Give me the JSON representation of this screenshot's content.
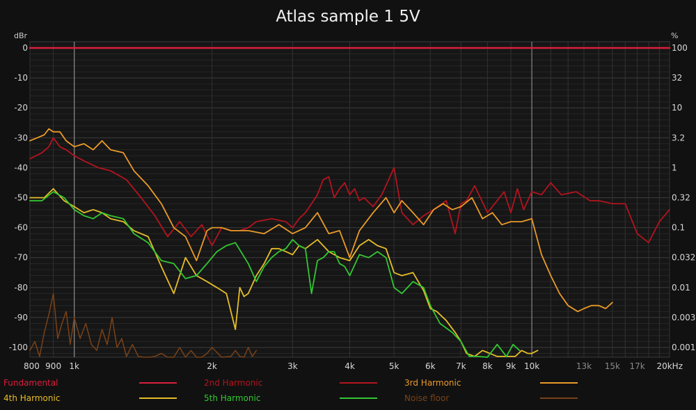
{
  "chart_data": {
    "type": "line",
    "title": "Atlas sample 1 5V",
    "ylabel_left": "dBr",
    "ylabel_right": "%",
    "x_scale": "log",
    "xlim": [
      800,
      20000
    ],
    "ylim": [
      -103,
      0
    ],
    "x_ticks": [
      {
        "v": 800,
        "label": "800",
        "dim": false
      },
      {
        "v": 900,
        "label": "900",
        "dim": false
      },
      {
        "v": 1000,
        "label": "1k",
        "dim": false
      },
      {
        "v": 2000,
        "label": "2k",
        "dim": false
      },
      {
        "v": 3000,
        "label": "3k",
        "dim": false
      },
      {
        "v": 4000,
        "label": "4k",
        "dim": false
      },
      {
        "v": 5000,
        "label": "5k",
        "dim": false
      },
      {
        "v": 6000,
        "label": "6k",
        "dim": false
      },
      {
        "v": 7000,
        "label": "7k",
        "dim": false
      },
      {
        "v": 8000,
        "label": "8k",
        "dim": false
      },
      {
        "v": 9000,
        "label": "9k",
        "dim": false
      },
      {
        "v": 10000,
        "label": "10k",
        "dim": false
      },
      {
        "v": 13000,
        "label": "13k",
        "dim": true
      },
      {
        "v": 15000,
        "label": "15k",
        "dim": true
      },
      {
        "v": 17000,
        "label": "17k",
        "dim": true
      },
      {
        "v": 20000,
        "label": "20kHz",
        "dim": false
      }
    ],
    "y_ticks_left": [
      0,
      -10,
      -20,
      -30,
      -40,
      -50,
      -60,
      -70,
      -80,
      -90,
      -100
    ],
    "y_ticks_right": [
      "100",
      "32",
      "10",
      "3.2",
      "1",
      "0.32",
      "0.1",
      "0.032",
      "0.01",
      "0.0032",
      "0.001"
    ],
    "grid": true,
    "legend_position": "bottom",
    "series": [
      {
        "name": "Fundamental",
        "color": "#dc1e3c",
        "x": [
          800,
          20000
        ],
        "y": [
          0,
          0
        ]
      },
      {
        "name": "2nd Harmonic",
        "color": "#b4141e",
        "x": [
          800,
          850,
          880,
          900,
          930,
          960,
          1000,
          1060,
          1130,
          1200,
          1300,
          1400,
          1500,
          1600,
          1700,
          1800,
          1900,
          2000,
          2100,
          2200,
          2300,
          2400,
          2500,
          2700,
          2900,
          3000,
          3100,
          3200,
          3300,
          3400,
          3500,
          3600,
          3700,
          3800,
          3900,
          4000,
          4100,
          4200,
          4300,
          4500,
          4700,
          5000,
          5200,
          5500,
          5800,
          6100,
          6500,
          6800,
          7000,
          7200,
          7500,
          8000,
          8300,
          8700,
          9000,
          9300,
          9600,
          10000,
          10500,
          11000,
          11600,
          12500,
          13400,
          14000,
          15000,
          16000,
          17000,
          18000,
          19000,
          20000
        ],
        "y": [
          -37,
          -35,
          -33,
          -30,
          -33,
          -34,
          -36,
          -38,
          -40,
          -41,
          -44,
          -50,
          -56,
          -63,
          -58,
          -63,
          -59,
          -66,
          -60,
          -61,
          -61,
          -60,
          -58,
          -57,
          -58,
          -60,
          -57,
          -55,
          -52,
          -49,
          -44,
          -43,
          -50,
          -47,
          -45,
          -49,
          -47,
          -51,
          -50,
          -53,
          -49,
          -40,
          -55,
          -59,
          -56,
          -54,
          -51,
          -62,
          -52,
          -51,
          -46,
          -55,
          -52,
          -48,
          -55,
          -47,
          -54,
          -48,
          -49,
          -45,
          -49,
          -48,
          -51,
          -51,
          -52,
          -52,
          -62,
          -65,
          -58,
          -54
        ]
      },
      {
        "name": "3rd Harmonic",
        "color": "#eb9b28",
        "x": [
          800,
          830,
          860,
          880,
          900,
          930,
          960,
          1000,
          1050,
          1100,
          1150,
          1200,
          1280,
          1350,
          1450,
          1550,
          1650,
          1750,
          1850,
          1950,
          2000,
          2100,
          2200,
          2400,
          2600,
          2800,
          3000,
          3200,
          3400,
          3600,
          3800,
          4000,
          4200,
          4500,
          4800,
          5000,
          5200,
          5500,
          5800,
          6100,
          6400,
          6700,
          7000,
          7400,
          7800,
          8200,
          8600,
          9000,
          9500,
          10000,
          10500,
          11000,
          11500,
          12000,
          12600,
          13000,
          13500,
          14000,
          14500,
          15000
        ],
        "y": [
          -31,
          -30,
          -29,
          -27,
          -28,
          -28,
          -31,
          -33,
          -32,
          -34,
          -31,
          -34,
          -35,
          -41,
          -46,
          -52,
          -60,
          -63,
          -71,
          -61,
          -60,
          -60,
          -61,
          -61,
          -62,
          -59,
          -62,
          -60,
          -55,
          -62,
          -61,
          -70,
          -61,
          -55,
          -50,
          -55,
          -51,
          -55,
          -59,
          -54,
          -52,
          -54,
          -53,
          -50,
          -57,
          -55,
          -59,
          -58,
          -58,
          -57,
          -69,
          -76,
          -82,
          -86,
          -88,
          -87,
          -86,
          -86,
          -87,
          -85
        ]
      },
      {
        "name": "4th Harmonic",
        "color": "#e6be28",
        "x": [
          800,
          860,
          900,
          950,
          1000,
          1050,
          1100,
          1150,
          1200,
          1280,
          1350,
          1450,
          1550,
          1650,
          1750,
          1850,
          1950,
          2050,
          2150,
          2250,
          2300,
          2350,
          2400,
          2500,
          2600,
          2700,
          2800,
          2900,
          3000,
          3100,
          3200,
          3400,
          3600,
          3800,
          4000,
          4200,
          4400,
          4600,
          4800,
          5000,
          5200,
          5500,
          5800,
          6000,
          6200,
          6500,
          6800,
          7000,
          7200,
          7500,
          7800,
          8100,
          8400,
          8700,
          9000,
          9200,
          9500,
          9800,
          10000,
          10300
        ],
        "y": [
          -50,
          -50,
          -47,
          -51,
          -53,
          -55,
          -54,
          -55,
          -57,
          -58,
          -61,
          -63,
          -73,
          -82,
          -70,
          -76,
          -78,
          -80,
          -82,
          -94,
          -80,
          -83,
          -82,
          -76,
          -72,
          -67,
          -67,
          -68,
          -69,
          -66,
          -67,
          -64,
          -68,
          -70,
          -71,
          -66,
          -64,
          -66,
          -67,
          -75,
          -76,
          -75,
          -81,
          -87,
          -88,
          -91,
          -95,
          -98,
          -102,
          -103,
          -101,
          -102,
          -103,
          -103,
          -103,
          -103,
          -101,
          -102,
          -102,
          -101
        ]
      },
      {
        "name": "5th Harmonic",
        "color": "#32c832",
        "x": [
          800,
          850,
          900,
          950,
          1000,
          1050,
          1100,
          1150,
          1200,
          1280,
          1350,
          1450,
          1550,
          1650,
          1750,
          1850,
          1950,
          2050,
          2150,
          2250,
          2400,
          2500,
          2600,
          2700,
          2800,
          2900,
          3000,
          3100,
          3200,
          3300,
          3400,
          3500,
          3600,
          3700,
          3800,
          3900,
          4000,
          4200,
          4400,
          4600,
          4800,
          5000,
          5200,
          5500,
          5800,
          6000,
          6300,
          6700,
          7000,
          7300,
          7600,
          8000,
          8400,
          8800,
          9100,
          9400
        ],
        "y": [
          -51,
          -51,
          -48,
          -50,
          -54,
          -56,
          -57,
          -55,
          -56,
          -57,
          -62,
          -65,
          -71,
          -72,
          -77,
          -76,
          -72,
          -68,
          -66,
          -65,
          -72,
          -78,
          -73,
          -70,
          -68,
          -67,
          -64,
          -66,
          -67,
          -82,
          -71,
          -70,
          -68,
          -68,
          -72,
          -73,
          -76,
          -69,
          -70,
          -68,
          -70,
          -80,
          -82,
          -78,
          -80,
          -86,
          -92,
          -95,
          -98,
          -103,
          -103,
          -104,
          -99,
          -103,
          -99,
          -101
        ]
      },
      {
        "name": "Noise floor",
        "color": "#7a4218",
        "x": [
          800,
          820,
          840,
          860,
          880,
          900,
          920,
          940,
          960,
          980,
          1000,
          1030,
          1060,
          1090,
          1120,
          1150,
          1180,
          1210,
          1240,
          1270,
          1300,
          1340,
          1380,
          1420,
          1460,
          1500,
          1550,
          1600,
          1650,
          1700,
          1750,
          1800,
          1850,
          1900,
          1950,
          2000,
          2100,
          2200,
          2250,
          2300,
          2350,
          2400,
          2450,
          2500
        ],
        "y": [
          -101,
          -98,
          -103,
          -95,
          -89,
          -82,
          -97,
          -92,
          -88,
          -99,
          -90,
          -97,
          -92,
          -99,
          -101,
          -94,
          -99,
          -90,
          -100,
          -97,
          -103,
          -99,
          -103,
          -104,
          -105,
          -103,
          -102,
          -105,
          -104,
          -100,
          -104,
          -101,
          -106,
          -105,
          -102,
          -100,
          -104,
          -103,
          -101,
          -103,
          -104,
          -100,
          -103,
          -101
        ]
      }
    ]
  },
  "legend": [
    {
      "label": "Fundamental",
      "color": "#dc1e3c"
    },
    {
      "label": "2nd Harmonic",
      "color": "#b4141e"
    },
    {
      "label": "3rd Harmonic",
      "color": "#eb9b28"
    },
    {
      "label": "4th Harmonic",
      "color": "#e6be28"
    },
    {
      "label": "5th Harmonic",
      "color": "#32c832"
    },
    {
      "label": "Noise floor",
      "color": "#7a4218"
    }
  ]
}
